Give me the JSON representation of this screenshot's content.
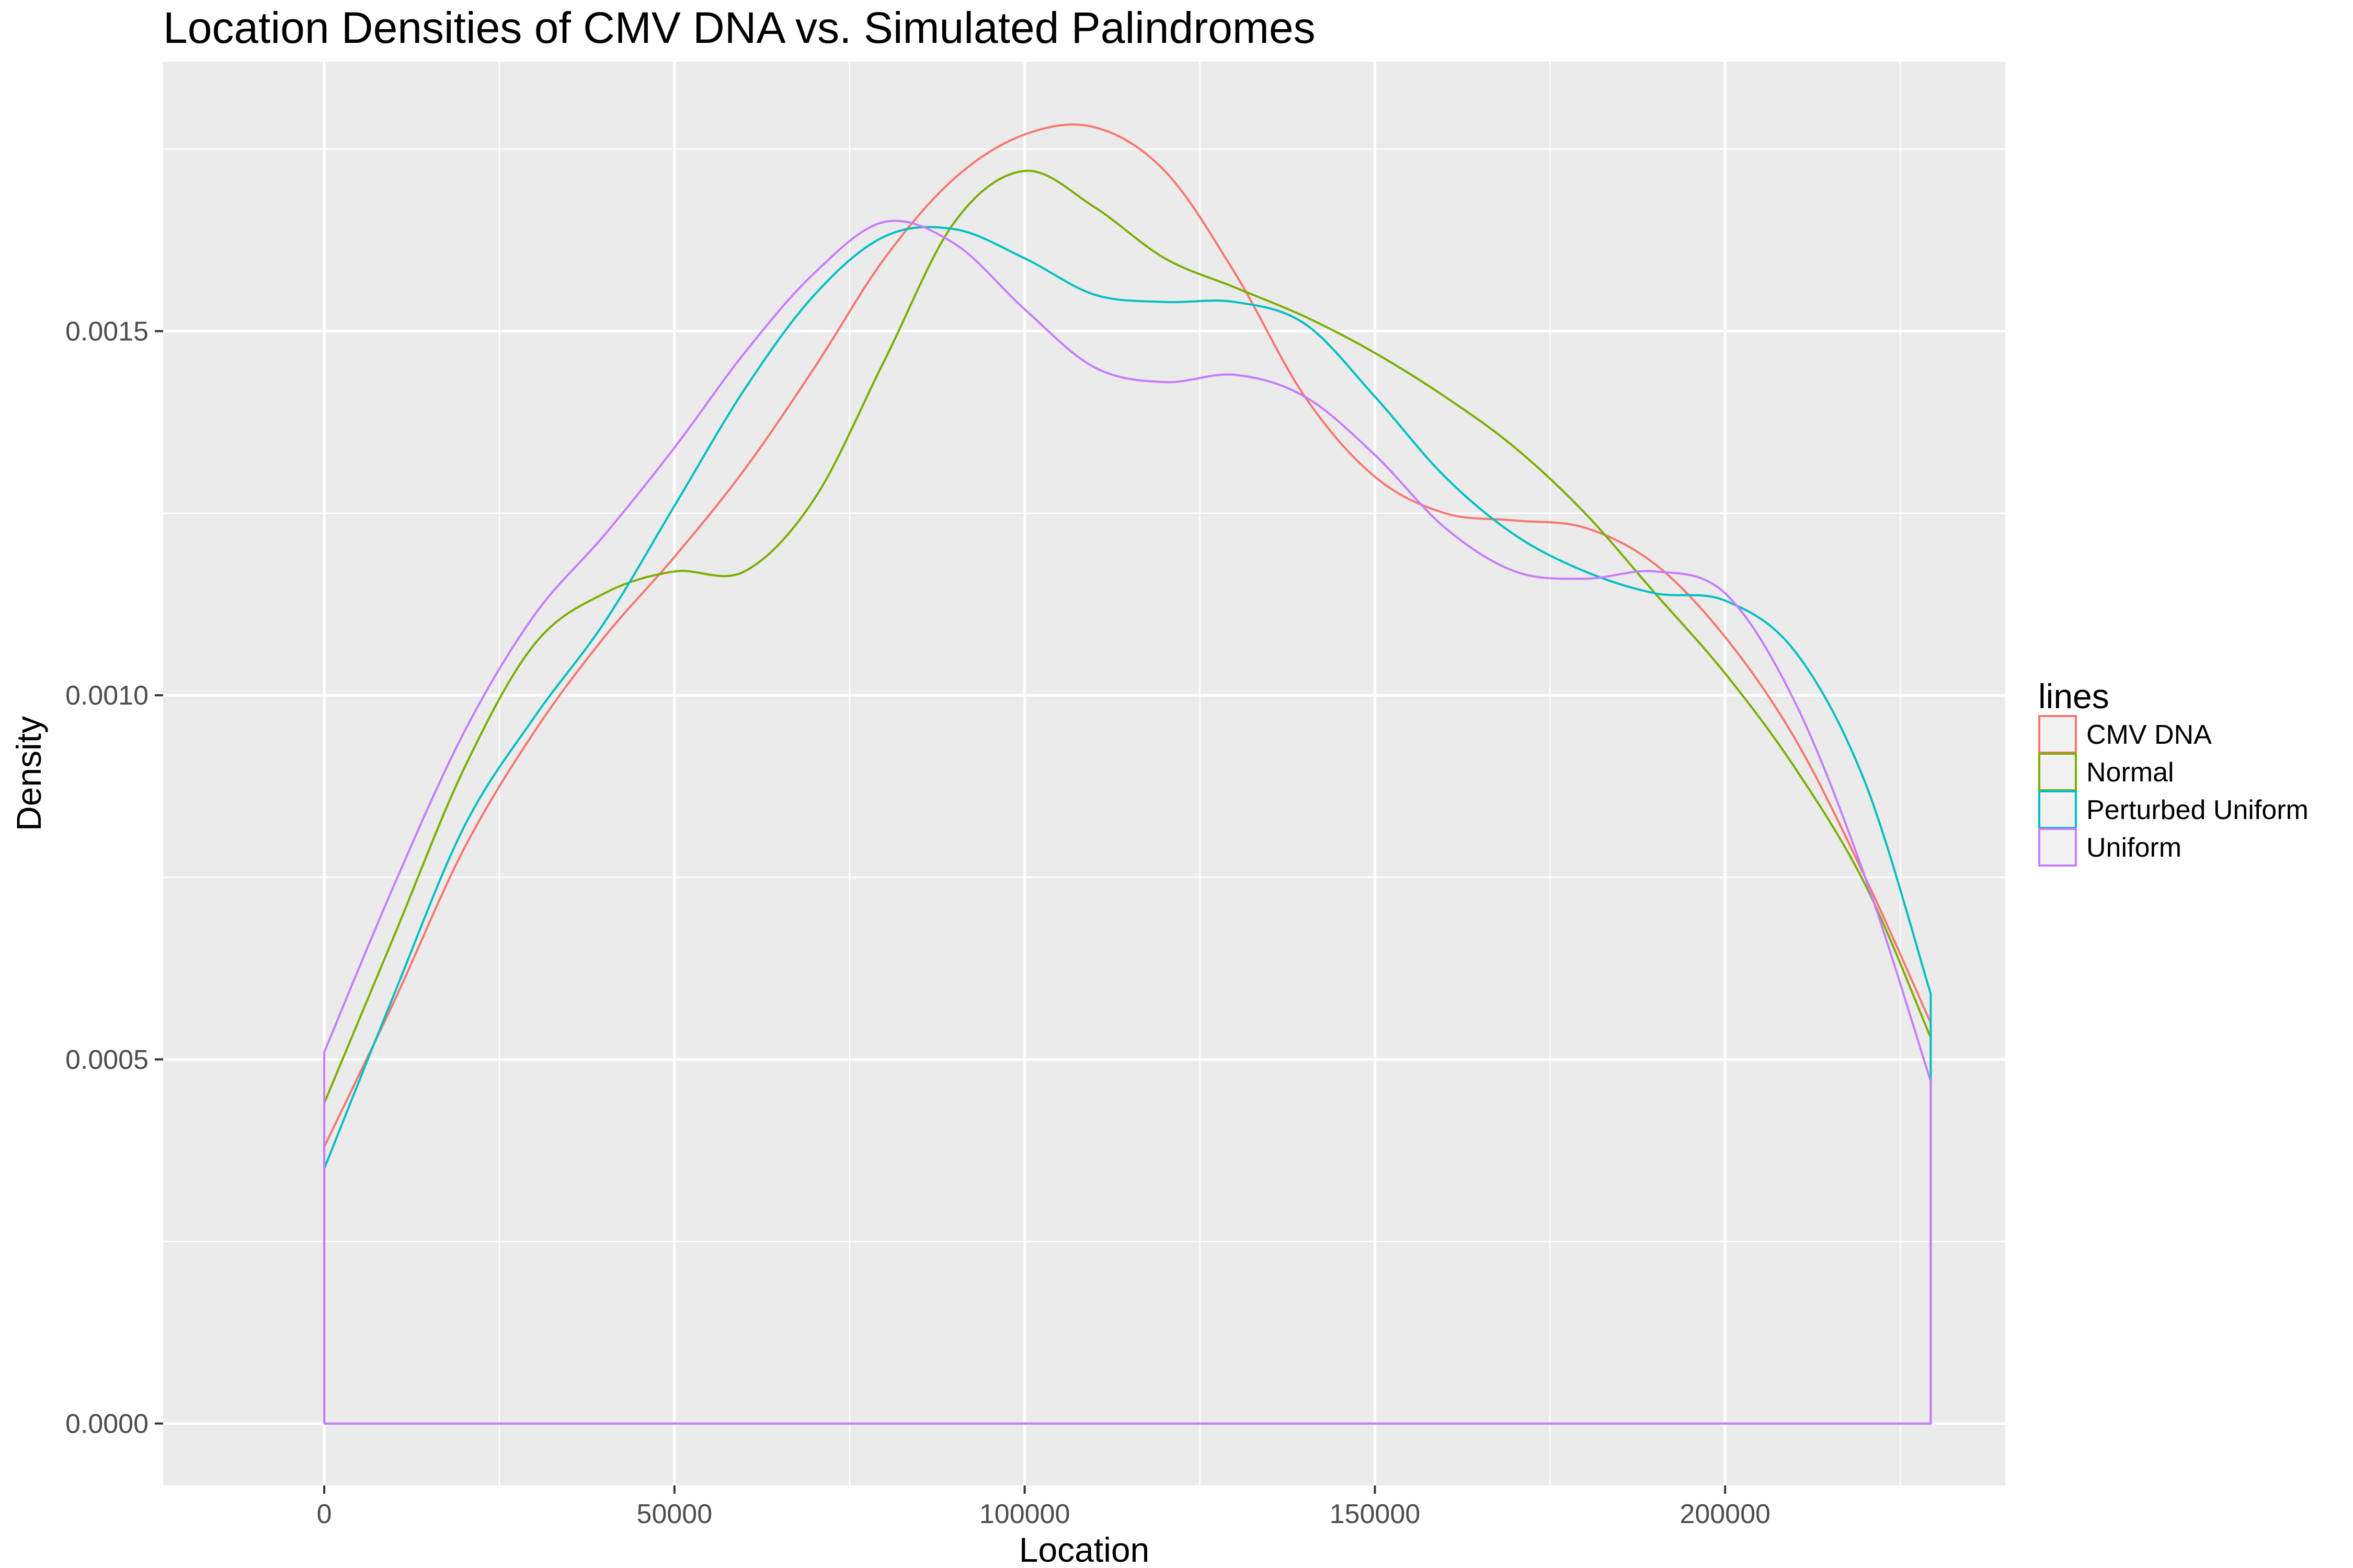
{
  "chart_data": {
    "type": "line",
    "title": "Location Densities of CMV DNA vs. Simulated Palindromes",
    "xlabel": "Location",
    "ylabel": "Density",
    "xlim": [
      -23000,
      240000
    ],
    "ylim": [
      -8.5e-05,
      0.00187
    ],
    "x_ticks": [
      0,
      50000,
      100000,
      150000,
      200000
    ],
    "x_tick_labels": [
      "0",
      "50000",
      "100000",
      "150000",
      "200000"
    ],
    "y_ticks": [
      0,
      0.0005,
      0.001,
      0.0015
    ],
    "y_tick_labels": [
      "0.0000",
      "0.0005",
      "0.0010",
      "0.0015"
    ],
    "grid": true,
    "legend": {
      "title": "lines",
      "position": "right"
    },
    "background": "#ebebeb",
    "grid_color": "#ffffff",
    "x": [
      0,
      10000,
      20000,
      30000,
      40000,
      50000,
      60000,
      70000,
      80000,
      90000,
      100000,
      110000,
      120000,
      130000,
      140000,
      150000,
      160000,
      170000,
      180000,
      190000,
      200000,
      210000,
      220000,
      229354
    ],
    "series": [
      {
        "name": "CMV DNA",
        "color": "#f8766d",
        "values": [
          0.00038,
          0.00058,
          0.00079,
          0.00095,
          0.00108,
          0.00119,
          0.00131,
          0.00145,
          0.0016,
          0.00171,
          0.00177,
          0.00178,
          0.00172,
          0.00158,
          0.00141,
          0.0013,
          0.00125,
          0.00124,
          0.00123,
          0.00118,
          0.00108,
          0.00094,
          0.00075,
          0.00055
        ]
      },
      {
        "name": "Normal",
        "color": "#7cae00",
        "values": [
          0.00044,
          0.00067,
          0.0009,
          0.00107,
          0.00114,
          0.00117,
          0.00117,
          0.00127,
          0.00146,
          0.00165,
          0.00172,
          0.00167,
          0.0016,
          0.00156,
          0.00152,
          0.00147,
          0.00141,
          0.00134,
          0.00125,
          0.00114,
          0.00103,
          0.0009,
          0.00074,
          0.00053
        ]
      },
      {
        "name": "Perturbed Uniform",
        "color": "#00bfc4",
        "values": [
          0.00035,
          0.00059,
          0.00082,
          0.00097,
          0.0011,
          0.00126,
          0.00142,
          0.00155,
          0.00163,
          0.00164,
          0.0016,
          0.00155,
          0.00154,
          0.00154,
          0.00151,
          0.00141,
          0.0013,
          0.00122,
          0.00117,
          0.00114,
          0.00113,
          0.00106,
          0.00088,
          0.00059
        ]
      },
      {
        "name": "Uniform",
        "color": "#c77cff",
        "values": [
          0.00051,
          0.00074,
          0.00095,
          0.00111,
          0.00122,
          0.00134,
          0.00147,
          0.00158,
          0.00165,
          0.00162,
          0.00153,
          0.00145,
          0.00143,
          0.00144,
          0.00141,
          0.00133,
          0.00123,
          0.00117,
          0.00116,
          0.00117,
          0.00114,
          0.00099,
          0.00075,
          0.00047
        ]
      }
    ]
  }
}
